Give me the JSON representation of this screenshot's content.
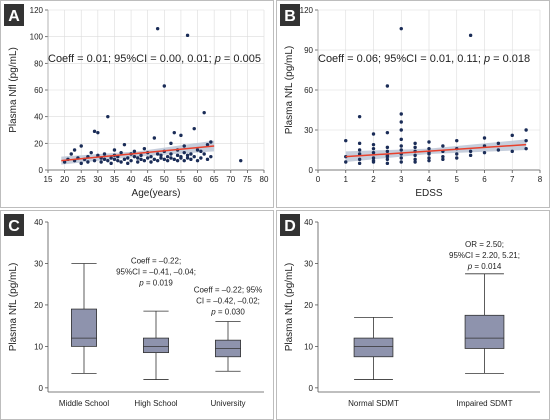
{
  "panels": [
    {
      "letter": "A",
      "annotation": {
        "pre": "Coeff = 0.01; 95%CI = 0.00, 0.01; ",
        "p_sym": "p",
        "post": " = 0.005"
      },
      "chart_data": {
        "type": "scatter",
        "xlabel": "Age(years)",
        "ylabel": "Plasma Nfl (pg/mL)",
        "xlim": [
          15,
          80
        ],
        "ylim": [
          0,
          120
        ],
        "xticks": [
          "15",
          "20",
          "25",
          "30",
          "35",
          "40",
          "45",
          "50",
          "55",
          "60",
          "65",
          "70",
          "75",
          "80"
        ],
        "yticks": [
          "0",
          "20",
          "40",
          "60",
          "80",
          "100",
          "120"
        ],
        "grid": true,
        "fit_line": {
          "x": [
            19,
            65
          ],
          "y": [
            7,
            18
          ]
        },
        "ci_band": {
          "x": [
            19,
            42,
            65
          ],
          "upper": [
            10,
            14,
            22
          ],
          "lower": [
            4,
            10,
            14
          ]
        },
        "points": {
          "x": [
            20,
            21,
            22,
            23,
            23,
            24,
            25,
            25,
            26,
            27,
            27,
            28,
            29,
            29,
            30,
            30,
            31,
            31,
            32,
            32,
            33,
            33,
            34,
            34,
            35,
            35,
            35,
            36,
            36,
            37,
            37,
            38,
            38,
            39,
            39,
            40,
            40,
            41,
            41,
            42,
            42,
            43,
            43,
            44,
            44,
            45,
            45,
            46,
            46,
            47,
            47,
            48,
            48,
            48,
            49,
            49,
            50,
            50,
            50,
            51,
            51,
            52,
            52,
            52,
            53,
            53,
            54,
            54,
            54,
            55,
            55,
            55,
            56,
            56,
            56,
            57,
            57,
            57,
            58,
            58,
            59,
            59,
            60,
            60,
            61,
            61,
            62,
            62,
            63,
            63,
            64,
            64,
            73
          ],
          "y": [
            6,
            8,
            12,
            7,
            15,
            9,
            5,
            18,
            8,
            10,
            6,
            13,
            29,
            7,
            11,
            28,
            6,
            9,
            8,
            12,
            7,
            40,
            9,
            5,
            11,
            8,
            15,
            7,
            10,
            6,
            13,
            8,
            19,
            5,
            9,
            12,
            7,
            10,
            14,
            6,
            9,
            8,
            11,
            7,
            16,
            13,
            9,
            6,
            10,
            24,
            8,
            12,
            7,
            106,
            9,
            11,
            8,
            14,
            63,
            7,
            10,
            12,
            9,
            20,
            8,
            28,
            11,
            7,
            15,
            9,
            26,
            10,
            7,
            13,
            18,
            9,
            11,
            101,
            8,
            12,
            10,
            31,
            7,
            15,
            14,
            9,
            43,
            12,
            8,
            19,
            10,
            21,
            7
          ]
        }
      }
    },
    {
      "letter": "B",
      "annotation": {
        "pre": "Coeff = 0.06; 95%CI = 0.01, 0.11; ",
        "p_sym": "p",
        "post": " = 0.018"
      },
      "chart_data": {
        "type": "scatter",
        "xlabel": "EDSS",
        "ylabel": "Plasma NfL (pg/mL)",
        "xlim": [
          0,
          8
        ],
        "ylim": [
          0,
          120
        ],
        "xticks": [
          "0",
          "1",
          "2",
          "3",
          "4",
          "5",
          "6",
          "7",
          "8"
        ],
        "yticks": [
          "0",
          "30",
          "60",
          "90",
          "120"
        ],
        "grid": true,
        "fit_line": {
          "x": [
            1,
            7.5
          ],
          "y": [
            10,
            19
          ]
        },
        "ci_band": {
          "x": [
            1,
            4,
            7.5
          ],
          "upper": [
            14,
            16,
            23
          ],
          "lower": [
            6,
            12,
            15
          ]
        },
        "points": {
          "x": [
            1,
            1,
            1,
            1.5,
            1.5,
            1.5,
            1.5,
            1.5,
            1.5,
            2,
            2,
            2,
            2,
            2,
            2,
            2,
            2.5,
            2.5,
            2.5,
            2.5,
            2.5,
            2.5,
            2.5,
            2.5,
            3,
            3,
            3,
            3,
            3,
            3,
            3,
            3,
            3,
            3,
            3.5,
            3.5,
            3.5,
            3.5,
            3.5,
            3.5,
            4,
            4,
            4,
            4,
            4,
            4,
            4.5,
            4.5,
            4.5,
            4.5,
            5,
            5,
            5,
            5,
            5.5,
            5.5,
            5.5,
            6,
            6,
            6,
            6.5,
            6.5,
            7,
            7,
            7.5,
            7.5,
            7.5
          ],
          "y": [
            6,
            10,
            22,
            5,
            8,
            12,
            15,
            20,
            40,
            7,
            9,
            13,
            16,
            27,
            19,
            6,
            8,
            11,
            14,
            17,
            28,
            63,
            5,
            10,
            6,
            9,
            12,
            15,
            18,
            23,
            30,
            42,
            106,
            36,
            8,
            11,
            14,
            20,
            6,
            17,
            9,
            12,
            16,
            7,
            21,
            13,
            10,
            14,
            8,
            18,
            9,
            12,
            16,
            22,
            11,
            101,
            14,
            13,
            18,
            24,
            15,
            20,
            14,
            26,
            16,
            22,
            30
          ]
        }
      }
    },
    {
      "letter": "C",
      "annotations": [
        {
          "lines": [
            "Coeff = –0.22;",
            "95%CI = –0.41, –0.04;"
          ],
          "p_sym": "p",
          "p_post": " = 0.019"
        },
        {
          "lines": [
            "Coeff = –0.22; 95%",
            "CI = –0.42, –0.02;"
          ],
          "p_sym": "p",
          "p_post": " = 0.030"
        }
      ],
      "chart_data": {
        "type": "box",
        "ylabel": "Plasma NfL (pg/mL)",
        "ylim": [
          -1,
          40
        ],
        "yticks": [
          "0",
          "10",
          "20",
          "30",
          "40"
        ],
        "grid": false,
        "categories": [
          "Middle School",
          "High School",
          "University"
        ],
        "boxes": [
          {
            "min": 3.5,
            "q1": 10,
            "median": 12,
            "q3": 19,
            "max": 30
          },
          {
            "min": 2,
            "q1": 8.5,
            "median": 10,
            "q3": 12,
            "max": 18.5
          },
          {
            "min": 4,
            "q1": 7.5,
            "median": 9.5,
            "q3": 11.5,
            "max": 16
          }
        ]
      }
    },
    {
      "letter": "D",
      "annotations": [
        {
          "lines": [
            "OR = 2.50;",
            "95%CI = 2.20, 5.21;"
          ],
          "p_sym": "p",
          "p_post": " = 0.014"
        }
      ],
      "chart_data": {
        "type": "box",
        "ylabel": "Plasma NfL (pg/mL)",
        "ylim": [
          -1,
          40
        ],
        "yticks": [
          "0",
          "10",
          "20",
          "30",
          "40"
        ],
        "grid": false,
        "categories": [
          "Normal SDMT",
          "Impaired SDMT"
        ],
        "boxes": [
          {
            "min": 2,
            "q1": 7.5,
            "median": 10,
            "q3": 12,
            "max": 17
          },
          {
            "min": 3.5,
            "q1": 9.5,
            "median": 12,
            "q3": 17.5,
            "max": 27.5
          }
        ]
      }
    }
  ]
}
